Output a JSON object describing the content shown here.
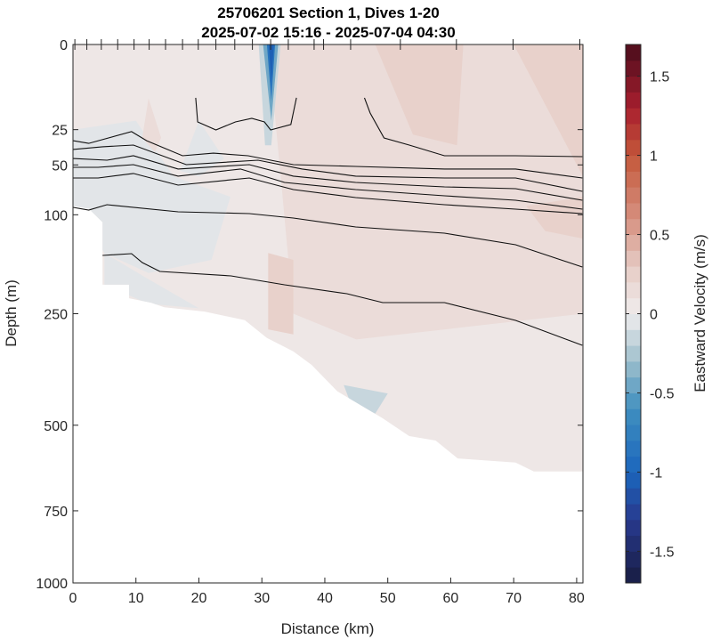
{
  "chart_data": {
    "type": "heatmap",
    "title": "25706201 Section 1, Dives 1-20",
    "subtitle": "2025-07-02 15:16 - 2025-07-04 04:30",
    "xlabel": "Distance (km)",
    "ylabel": "Depth (m)",
    "colorbar_label": "Eastward Velocity (m/s)",
    "xlim": [
      0,
      81
    ],
    "ylim": [
      0,
      1000
    ],
    "y_scale": "sqrt",
    "y_reversed": true,
    "clim": [
      -1.7,
      1.7
    ],
    "color_levels_step": 0.1,
    "colormap_anchors": [
      {
        "v": -1.7,
        "c": "#181c42"
      },
      {
        "v": -1.3,
        "c": "#283a8e"
      },
      {
        "v": -1.0,
        "c": "#1b66bd"
      },
      {
        "v": -0.6,
        "c": "#3f8fbf"
      },
      {
        "v": -0.3,
        "c": "#9ebfcc"
      },
      {
        "v": 0.0,
        "c": "#f0eded"
      },
      {
        "v": 0.3,
        "c": "#e6cbc4"
      },
      {
        "v": 0.6,
        "c": "#d69080"
      },
      {
        "v": 1.0,
        "c": "#c4583a"
      },
      {
        "v": 1.3,
        "c": "#a81e2e"
      },
      {
        "v": 1.7,
        "c": "#4a0d1c"
      }
    ],
    "xticks": [
      0,
      10,
      20,
      30,
      40,
      50,
      60,
      70,
      80
    ],
    "xtick_labels": [
      "0",
      "10",
      "20",
      "30",
      "40",
      "50",
      "60",
      "70",
      "80"
    ],
    "yticks": [
      0,
      25,
      50,
      100,
      250,
      500,
      750,
      1000
    ],
    "ytick_labels": [
      "0",
      "25",
      "50",
      "100",
      "250",
      "500",
      "750",
      "1000"
    ],
    "cticks": [
      -1.5,
      -1,
      -0.5,
      0,
      0.5,
      1,
      1.5
    ],
    "ctick_labels": [
      "-1.5",
      "-1",
      "-0.5",
      "0",
      "0.5",
      "1",
      "1.5"
    ],
    "dive_positions_km": [
      0.3,
      2.2,
      4.5,
      7.1,
      9.7,
      12.1,
      14.7,
      17.4,
      19.9,
      22.7,
      25.7,
      28.5,
      31.4,
      34.2,
      38.3,
      39.8,
      44.1,
      52.0,
      60.9,
      69.9,
      80.5
    ],
    "background_value": 0.05,
    "data_bottom": [
      [
        0,
        0
      ],
      [
        0,
        90
      ],
      [
        2.5,
        93
      ],
      [
        4.7,
        109
      ],
      [
        4.7,
        199
      ],
      [
        8.9,
        199
      ],
      [
        8.9,
        222
      ],
      [
        12.4,
        230
      ],
      [
        14.5,
        238
      ],
      [
        20.9,
        246
      ],
      [
        27.3,
        262
      ],
      [
        30.8,
        297
      ],
      [
        35,
        325
      ],
      [
        37.9,
        354
      ],
      [
        42,
        415
      ],
      [
        49.2,
        482
      ],
      [
        53.4,
        529
      ],
      [
        57.6,
        541
      ],
      [
        61.1,
        591
      ],
      [
        70.3,
        603
      ],
      [
        73.2,
        629
      ],
      [
        81,
        629
      ],
      [
        81,
        0
      ]
    ],
    "patches": [
      {
        "value": 0.15,
        "points": [
          [
            31,
            0
          ],
          [
            81,
            0
          ],
          [
            81,
            250
          ],
          [
            45,
            300
          ],
          [
            35,
            250
          ],
          [
            33,
            60
          ]
        ]
      },
      {
        "value": 0.25,
        "points": [
          [
            48,
            0
          ],
          [
            62,
            0
          ],
          [
            61,
            35
          ],
          [
            54,
            28
          ]
        ]
      },
      {
        "value": 0.2,
        "points": [
          [
            70,
            0
          ],
          [
            81,
            0
          ],
          [
            81,
            60
          ]
        ]
      },
      {
        "value": 0.3,
        "points": [
          [
            31,
            150
          ],
          [
            35,
            160
          ],
          [
            35,
            290
          ],
          [
            31,
            280
          ]
        ]
      },
      {
        "value": 0.3,
        "points": [
          [
            72,
            90
          ],
          [
            81,
            80
          ],
          [
            81,
            130
          ],
          [
            75,
            120
          ]
        ]
      },
      {
        "value": -0.1,
        "points": [
          [
            0,
            25
          ],
          [
            10,
            20
          ],
          [
            16,
            60
          ],
          [
            25,
            80
          ],
          [
            22,
            160
          ],
          [
            12,
            180
          ],
          [
            5,
            150
          ],
          [
            0,
            90
          ]
        ]
      },
      {
        "value": -0.1,
        "points": [
          [
            5,
            150
          ],
          [
            12,
            190
          ],
          [
            20,
            240
          ],
          [
            12,
            232
          ],
          [
            5,
            199
          ]
        ]
      },
      {
        "value": -0.1,
        "points": [
          [
            20,
            20
          ],
          [
            24,
            45
          ],
          [
            20,
            60
          ],
          [
            17,
            55
          ]
        ]
      },
      {
        "value": -0.15,
        "points": [
          [
            43,
            400
          ],
          [
            50,
            420
          ],
          [
            48,
            470
          ],
          [
            44,
            440
          ]
        ]
      },
      {
        "value": 0.15,
        "points": [
          [
            12,
            10
          ],
          [
            14,
            30
          ],
          [
            13,
            40
          ],
          [
            11,
            30
          ]
        ]
      },
      {
        "value": -0.2,
        "points": [
          [
            29.5,
            0
          ],
          [
            33,
            0
          ],
          [
            31.5,
            35
          ],
          [
            30.5,
            35
          ]
        ]
      },
      {
        "value": -0.5,
        "points": [
          [
            30.2,
            0
          ],
          [
            32.6,
            0
          ],
          [
            31.5,
            20
          ]
        ]
      },
      {
        "value": -0.9,
        "points": [
          [
            30.8,
            0
          ],
          [
            32.1,
            0
          ],
          [
            31.5,
            11
          ]
        ]
      },
      {
        "value": -1.1,
        "points": [
          [
            31.1,
            0
          ],
          [
            31.9,
            0
          ],
          [
            31.5,
            5
          ]
        ]
      }
    ],
    "contours": [
      [
        [
          19.5,
          9.8
        ],
        [
          19.8,
          20.7
        ],
        [
          22.7,
          25.2
        ],
        [
          25.8,
          20.7
        ],
        [
          28.4,
          18.8
        ],
        [
          30.4,
          20.7
        ],
        [
          31.4,
          25.2
        ],
        [
          34.6,
          22.1
        ],
        [
          35.5,
          9.8
        ]
      ],
      [
        [
          46.3,
          9.8
        ],
        [
          47.2,
          16.2
        ],
        [
          49.4,
          30.1
        ],
        [
          53.4,
          34.9
        ],
        [
          59,
          42.7
        ],
        [
          70.3,
          42.7
        ],
        [
          80.9,
          43.4
        ]
      ],
      [
        [
          0,
          31.9
        ],
        [
          2.5,
          33.7
        ],
        [
          9.3,
          26.2
        ],
        [
          11.7,
          31.9
        ],
        [
          17.4,
          42.7
        ],
        [
          22.3,
          40.7
        ],
        [
          27.8,
          42.7
        ],
        [
          35,
          49.8
        ],
        [
          44.9,
          51.3
        ],
        [
          59,
          53.5
        ],
        [
          70.3,
          53.5
        ],
        [
          80.9,
          61.5
        ]
      ],
      [
        [
          0,
          38
        ],
        [
          4.7,
          36.1
        ],
        [
          9.6,
          34.9
        ],
        [
          18,
          49.8
        ],
        [
          29.4,
          46.2
        ],
        [
          36.4,
          53.5
        ],
        [
          44.9,
          59.8
        ],
        [
          59,
          61.5
        ],
        [
          70.3,
          61.5
        ],
        [
          80.9,
          74.4
        ]
      ],
      [
        [
          0,
          44.8
        ],
        [
          5.4,
          46.2
        ],
        [
          9.6,
          42.7
        ],
        [
          16.7,
          53.5
        ],
        [
          28,
          49.8
        ],
        [
          35,
          59.8
        ],
        [
          44.9,
          65.6
        ],
        [
          59,
          69.9
        ],
        [
          70.3,
          71.7
        ],
        [
          80.9,
          83.7
        ]
      ],
      [
        [
          0,
          52
        ],
        [
          4,
          52
        ],
        [
          9.6,
          49.8
        ],
        [
          16.7,
          59.8
        ],
        [
          26.6,
          53.5
        ],
        [
          33.6,
          65.6
        ],
        [
          44.9,
          72.6
        ],
        [
          59,
          79
        ],
        [
          70.3,
          83.7
        ],
        [
          80.9,
          93.5
        ]
      ],
      [
        [
          0,
          61.5
        ],
        [
          4,
          61.5
        ],
        [
          9.6,
          57.4
        ],
        [
          16.7,
          68.2
        ],
        [
          28,
          61.5
        ],
        [
          35,
          72.6
        ],
        [
          44.9,
          80.8
        ],
        [
          59,
          88.5
        ],
        [
          70.3,
          93.5
        ],
        [
          80.9,
          98.6
        ]
      ],
      [
        [
          0,
          91.5
        ],
        [
          2.5,
          94.5
        ],
        [
          5.4,
          88.5
        ],
        [
          16.7,
          96.6
        ],
        [
          28,
          98.6
        ],
        [
          35,
          103.9
        ],
        [
          44.9,
          114.8
        ],
        [
          59,
          122.8
        ],
        [
          70.3,
          138.3
        ],
        [
          80.9,
          170.8
        ]
      ],
      [
        [
          4.7,
          153.5
        ],
        [
          9.3,
          150.9
        ],
        [
          11,
          164
        ],
        [
          13.8,
          177.6
        ],
        [
          25.1,
          184.7
        ],
        [
          33.6,
          199.2
        ],
        [
          43.5,
          214.2
        ],
        [
          49.2,
          229.8
        ],
        [
          59,
          229.8
        ],
        [
          70.3,
          262.6
        ],
        [
          80.9,
          312.1
        ]
      ]
    ]
  }
}
